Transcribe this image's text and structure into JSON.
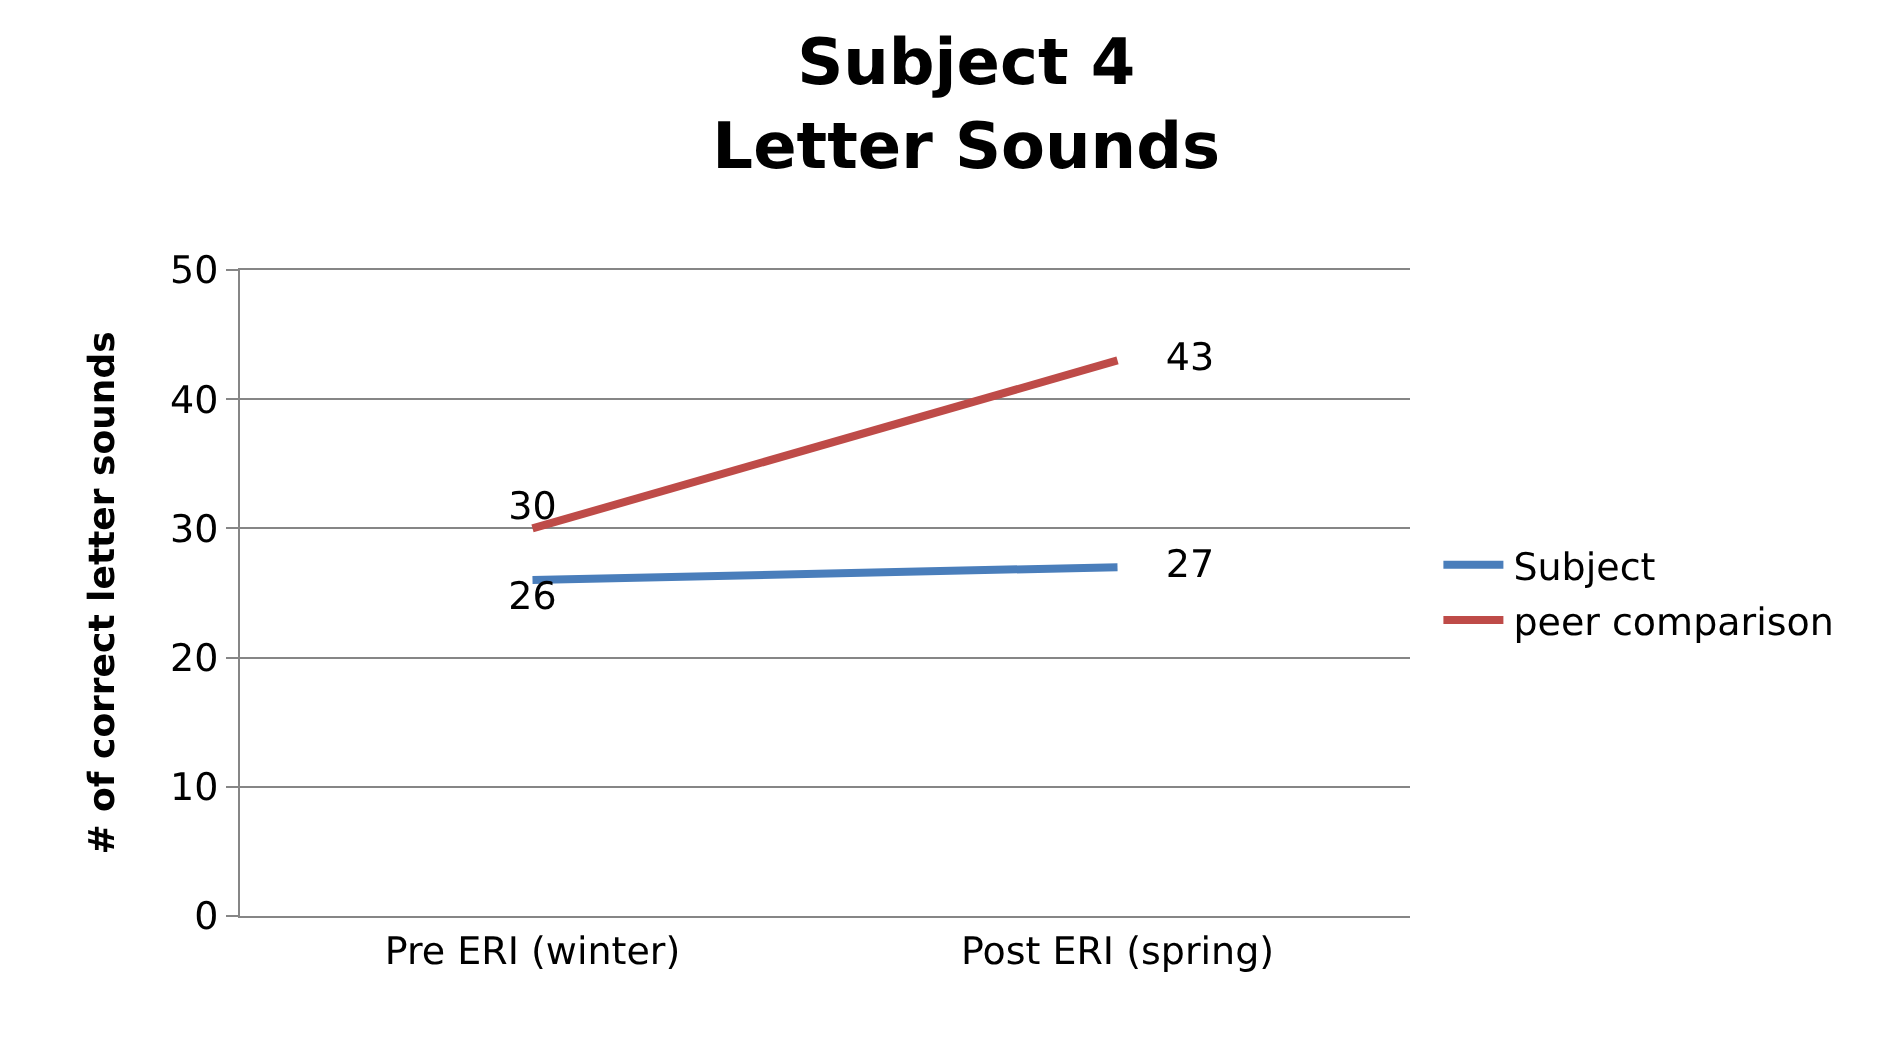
{
  "chart_data": {
    "type": "line",
    "title": "Subject 4\nLetter Sounds",
    "ylabel": "# of correct letter sounds",
    "categories": [
      "Pre ERI (winter)",
      "Post ERI (spring)"
    ],
    "series": [
      {
        "name": "Subject",
        "color": "#4a7ebb",
        "values": [
          26,
          27
        ]
      },
      {
        "name": "peer comparison",
        "color": "#be4b48",
        "values": [
          30,
          43
        ]
      }
    ],
    "ylim": [
      0,
      50
    ],
    "yticks": [
      0,
      10,
      20,
      30,
      40,
      50
    ],
    "grid": "y",
    "legend": "right",
    "marker": "none",
    "line_style": "solid",
    "data_labels": true
  }
}
